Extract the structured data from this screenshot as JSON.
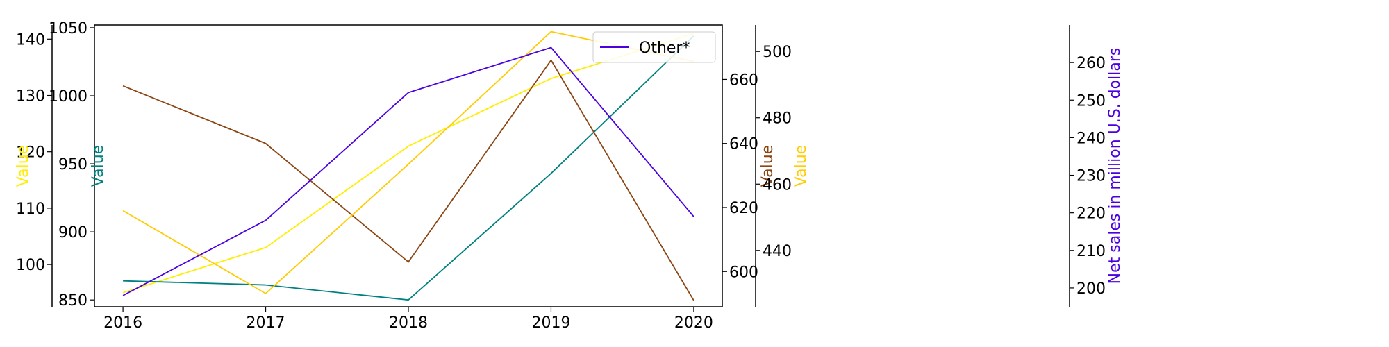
{
  "chart_data": {
    "type": "line",
    "categories": [
      "2016",
      "2017",
      "2018",
      "2019",
      "2020"
    ],
    "legend": {
      "placement": "top-right",
      "entries": [
        "Other*"
      ]
    },
    "axes": [
      {
        "id": "y-yellow",
        "side": "left",
        "label": "Value",
        "color": "#ffee00",
        "ylim": [
          92.5,
          142.5
        ],
        "ticks": [
          100,
          110,
          120,
          130,
          140
        ]
      },
      {
        "id": "y-teal",
        "side": "left",
        "label": "Value",
        "color": "#008080",
        "ylim": [
          845,
          1052
        ],
        "ticks": [
          850,
          900,
          950,
          1000,
          1050
        ]
      },
      {
        "id": "y-brown",
        "side": "right",
        "label": "Value",
        "color": "#8b4513",
        "ylim": [
          589,
          677
        ],
        "ticks": [
          600,
          620,
          640,
          660
        ]
      },
      {
        "id": "y-gold",
        "side": "right",
        "label": "Value",
        "color": "#ffcc00",
        "ylim": [
          423,
          508
        ],
        "ticks": [
          440,
          460,
          480,
          500
        ]
      },
      {
        "id": "y-purple",
        "side": "right",
        "label": "Net sales in million U.S. dollars",
        "color": "#4b00e0",
        "ylim": [
          195,
          270
        ],
        "ticks": [
          200,
          210,
          220,
          230,
          240,
          250,
          260
        ]
      }
    ],
    "series": [
      {
        "axis": "y-yellow",
        "color": "#ffee00",
        "values": [
          95,
          103,
          121,
          133,
          141
        ]
      },
      {
        "axis": "y-teal",
        "color": "#008080",
        "values": [
          864,
          861,
          850,
          943,
          1044
        ]
      },
      {
        "axis": "y-brown",
        "color": "#8b4513",
        "values": [
          658,
          640,
          603,
          666,
          591
        ]
      },
      {
        "axis": "y-gold",
        "color": "#ffcc00",
        "values": [
          452,
          427,
          466,
          506,
          497
        ]
      },
      {
        "name": "Other*",
        "axis": "y-purple",
        "color": "#4b00e0",
        "values": [
          198,
          218,
          252,
          264,
          219
        ]
      }
    ]
  }
}
